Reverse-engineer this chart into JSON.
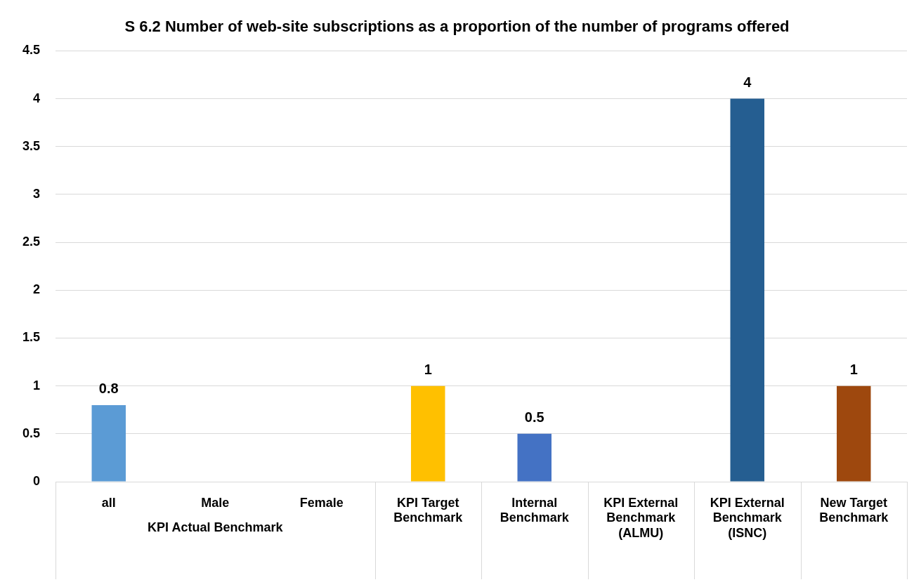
{
  "chart_data": {
    "type": "bar",
    "title": "S 6.2 Number of web-site subscriptions as a proportion of the number of programs offered",
    "categories": [
      "all",
      "Male",
      "Female",
      "KPI Target Benchmark",
      "Internal Benchmark",
      "KPI External Benchmark (ALMU)",
      "KPI External Benchmark (ISNC)",
      "New Target Benchmark"
    ],
    "values": [
      0.8,
      null,
      null,
      1,
      0.5,
      null,
      4,
      1
    ],
    "colors": [
      "#5b9bd5",
      "#5b9bd5",
      "#5b9bd5",
      "#ffc000",
      "#4472c4",
      "#a5a5a5",
      "#255e91",
      "#9e480e"
    ],
    "ylim": [
      0,
      4.5
    ],
    "yticks": [
      0,
      0.5,
      1,
      1.5,
      2,
      2.5,
      3,
      3.5,
      4,
      4.5
    ],
    "grid": "y",
    "legend": false,
    "data_labels": true,
    "annotations": [
      "KPI Actual Benchmark"
    ]
  }
}
